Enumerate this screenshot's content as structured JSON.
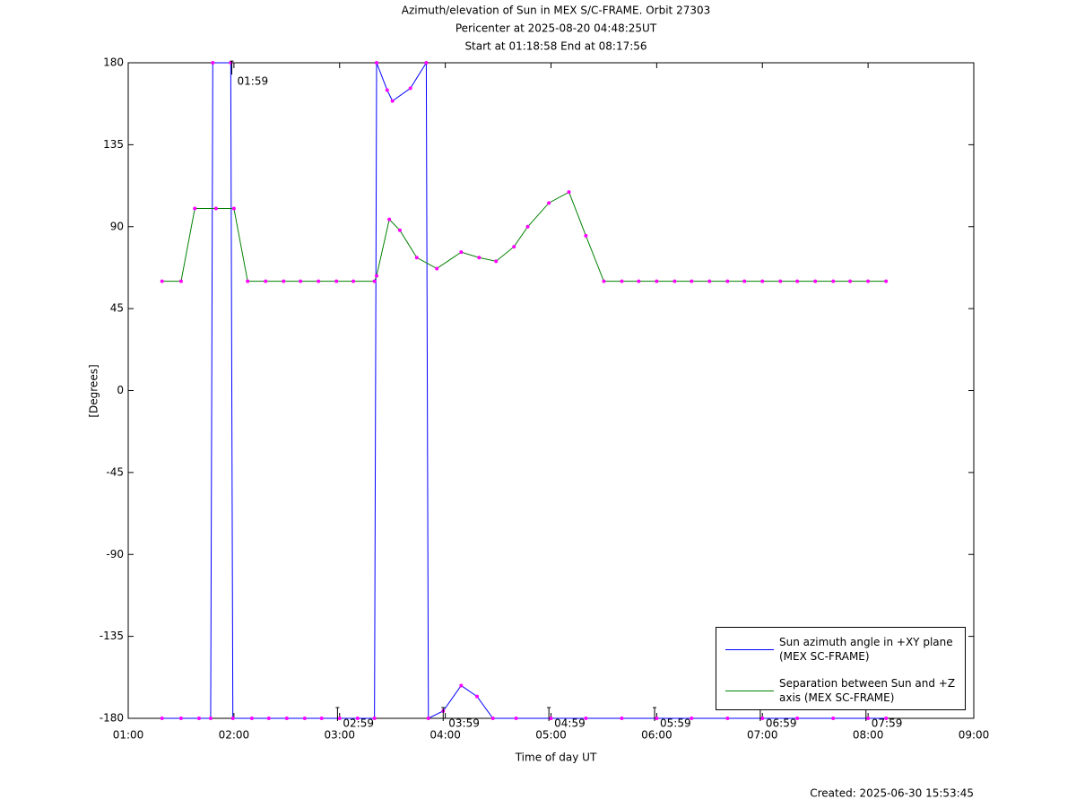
{
  "chart_data": {
    "type": "line",
    "title": "Azimuth/elevation of Sun in MEX S/C-FRAME.  Orbit 27303",
    "subtitle": [
      "Pericenter at 2025-08-20 04:48:25UT",
      "Start at 01:18:58 End at 08:17:56"
    ],
    "x_label": "Time of day UT",
    "y_label": "[Degrees]",
    "footer": "Created: 2025-06-30 15:53:45",
    "xlim": [
      1,
      9
    ],
    "xticks": [
      {
        "value": 1,
        "label": "01:00"
      },
      {
        "value": 2,
        "label": "02:00"
      },
      {
        "value": 3,
        "label": "03:00"
      },
      {
        "value": 4,
        "label": "04:00"
      },
      {
        "value": 5,
        "label": "05:00"
      },
      {
        "value": 6,
        "label": "06:00"
      },
      {
        "value": 7,
        "label": "07:00"
      },
      {
        "value": 8,
        "label": "08:00"
      },
      {
        "value": 9,
        "label": "09:00"
      }
    ],
    "ylim": [
      -180,
      180
    ],
    "yticks": [
      -180,
      -135,
      -90,
      -45,
      0,
      45,
      90,
      135,
      180
    ],
    "marker_color": "#ff00ff",
    "series": [
      {
        "name": "Sun azimuth angle in +XY plane (MEX SC-FRAME)",
        "color": "#0000ff",
        "x": [
          1.32,
          1.5,
          1.67,
          1.78,
          1.8,
          1.97,
          1.99,
          2.17,
          2.33,
          2.5,
          2.67,
          2.83,
          3.0,
          3.17,
          3.33,
          3.35,
          3.45,
          3.5,
          3.67,
          3.82,
          3.84,
          3.98,
          4.15,
          4.3,
          4.45,
          4.67,
          5.0,
          5.33,
          5.67,
          6.0,
          6.33,
          6.67,
          7.0,
          7.33,
          7.67,
          8.0,
          8.17
        ],
        "values": [
          -180,
          -180,
          -180,
          -180,
          180,
          180,
          -180,
          -180,
          -180,
          -180,
          -180,
          -180,
          -180,
          -180,
          -180,
          180,
          165,
          159,
          166,
          180,
          -180,
          -176,
          -162,
          -168,
          -180,
          -180,
          -180,
          -180,
          -180,
          -180,
          -180,
          -180,
          -180,
          -180,
          -180,
          -180,
          -180
        ]
      },
      {
        "name": "Separation between Sun and +Z axis (MEX SC-FRAME)",
        "color": "#008000",
        "x": [
          1.32,
          1.5,
          1.63,
          1.83,
          2.0,
          2.13,
          2.3,
          2.47,
          2.63,
          2.8,
          2.97,
          3.13,
          3.33,
          3.35,
          3.47,
          3.57,
          3.73,
          3.92,
          4.15,
          4.32,
          4.48,
          4.65,
          4.78,
          4.98,
          5.17,
          5.33,
          5.5,
          5.67,
          5.83,
          6.0,
          6.17,
          6.33,
          6.5,
          6.67,
          6.83,
          7.0,
          7.17,
          7.33,
          7.5,
          7.67,
          7.83,
          8.0,
          8.17
        ],
        "values": [
          60,
          60,
          100,
          100,
          100,
          60,
          60,
          60,
          60,
          60,
          60,
          60,
          60,
          63,
          94,
          88,
          73,
          67,
          76,
          73,
          71,
          79,
          90,
          103,
          109,
          85,
          60,
          60,
          60,
          60,
          60,
          60,
          60,
          60,
          60,
          60,
          60,
          60,
          60,
          60,
          60,
          60,
          60
        ]
      }
    ],
    "annotations": [
      {
        "text": "01:59",
        "x": 1.98,
        "y": 175
      },
      {
        "text": "02:59",
        "x": 2.98,
        "y": -180
      },
      {
        "text": "03:59",
        "x": 3.98,
        "y": -180
      },
      {
        "text": "04:59",
        "x": 4.98,
        "y": -180
      },
      {
        "text": "05:59",
        "x": 5.98,
        "y": -180
      },
      {
        "text": "06:59",
        "x": 6.98,
        "y": -180
      },
      {
        "text": "07:59",
        "x": 7.98,
        "y": -180
      }
    ]
  }
}
